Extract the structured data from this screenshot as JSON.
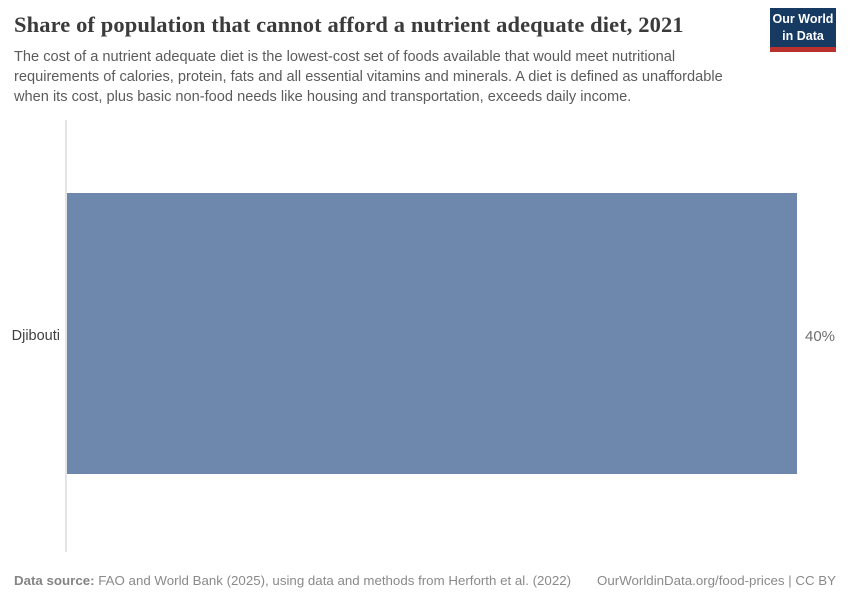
{
  "header": {
    "title": "Share of population that cannot afford a nutrient adequate diet, 2021",
    "subtitle": "The cost of a nutrient adequate diet is the lowest-cost set of foods available that would meet nutritional requirements of calories, protein, fats and all essential vitamins and minerals. A diet is defined as unaffordable when its cost, plus basic non-food needs like housing and transportation, exceeds daily income.",
    "logo": {
      "line1": "Our World",
      "line2": "in Data",
      "background_color": "#173a63",
      "accent_color": "#b9302c"
    }
  },
  "chart_data": {
    "type": "bar",
    "orientation": "horizontal",
    "title": "Share of population that cannot afford a nutrient adequate diet, 2021",
    "categories": [
      "Djibouti"
    ],
    "values": [
      40
    ],
    "value_labels": [
      "40%"
    ],
    "xlabel": "",
    "ylabel": "",
    "xlim": [
      0,
      40
    ],
    "grid": false,
    "legend": false,
    "bar_color": "#6e87ad",
    "axis_line_color": "#e4e4e4"
  },
  "footer": {
    "source_label": "Data source:",
    "source_text": " FAO and World Bank (2025), using data and methods from Herforth et al. (2022)",
    "link_text": "OurWorldinData.org/food-prices | CC BY"
  }
}
